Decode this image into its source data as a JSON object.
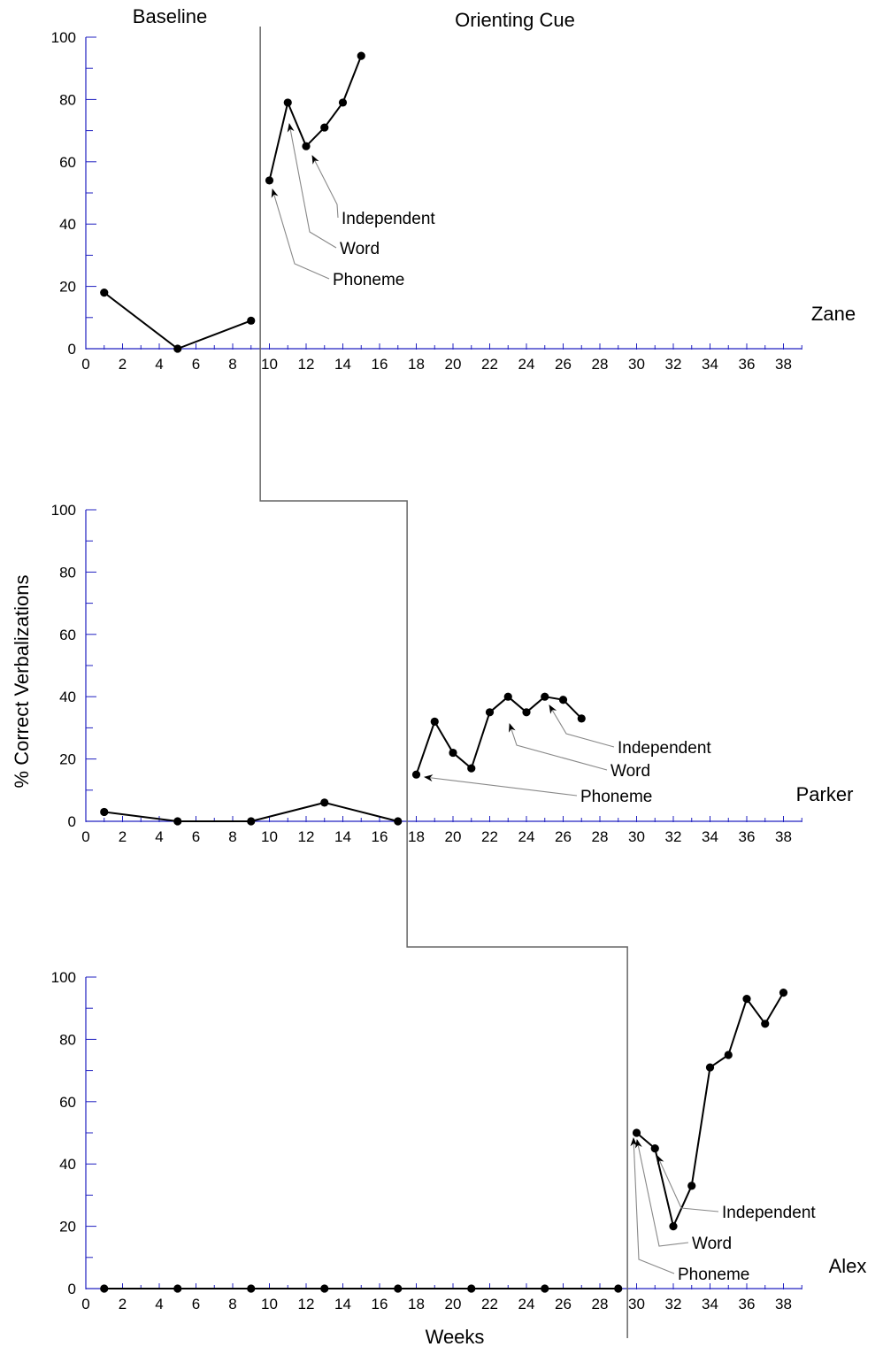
{
  "phase_labels": {
    "baseline": "Baseline",
    "treatment": "Orienting Cue"
  },
  "y_axis_title": "% Correct Verbalizations",
  "x_axis_title": "Weeks",
  "colors": {
    "axis": "#2020c0",
    "data": "#000000",
    "phase_line": "#666666",
    "annotation": "#888888"
  },
  "chart_data": [
    {
      "type": "line",
      "subject": "Zane",
      "xlim": [
        0,
        39
      ],
      "ylim": [
        0,
        100
      ],
      "x_ticks": [
        0,
        2,
        4,
        6,
        8,
        10,
        12,
        14,
        16,
        18,
        20,
        22,
        24,
        26,
        28,
        30,
        32,
        34,
        36,
        38
      ],
      "y_ticks": [
        0,
        20,
        40,
        60,
        80,
        100
      ],
      "grid": false,
      "phase_change_after_week": 9,
      "segments": [
        {
          "phase": "Baseline",
          "x": [
            1,
            5,
            9
          ],
          "y": [
            18,
            0,
            9
          ]
        },
        {
          "phase": "Orienting Cue",
          "x": [
            10,
            11,
            12,
            13,
            14,
            15
          ],
          "y": [
            54,
            79,
            65,
            71,
            79,
            94
          ]
        }
      ],
      "annotations": [
        {
          "text": "Phoneme",
          "x": 10,
          "y": 54
        },
        {
          "text": "Word",
          "x": 11,
          "y": 79
        },
        {
          "text": "Independent",
          "x": 12,
          "y": 65
        }
      ]
    },
    {
      "type": "line",
      "subject": "Parker",
      "xlim": [
        0,
        39
      ],
      "ylim": [
        0,
        100
      ],
      "x_ticks": [
        0,
        2,
        4,
        6,
        8,
        10,
        12,
        14,
        16,
        18,
        20,
        22,
        24,
        26,
        28,
        30,
        32,
        34,
        36,
        38
      ],
      "y_ticks": [
        0,
        20,
        40,
        60,
        80,
        100
      ],
      "grid": false,
      "phase_change_after_week": 17,
      "segments": [
        {
          "phase": "Baseline",
          "x": [
            1,
            5,
            9,
            13,
            17
          ],
          "y": [
            3,
            0,
            0,
            6,
            0
          ]
        },
        {
          "phase": "Orienting Cue",
          "x": [
            18,
            19,
            20,
            21,
            22,
            23,
            24,
            25,
            26,
            27
          ],
          "y": [
            15,
            32,
            22,
            17,
            35,
            40,
            35,
            40,
            39,
            33
          ]
        }
      ],
      "annotations": [
        {
          "text": "Phoneme",
          "x": 18,
          "y": 15
        },
        {
          "text": "Word",
          "x": 23,
          "y": 40
        },
        {
          "text": "Independent",
          "x": 25,
          "y": 40
        }
      ]
    },
    {
      "type": "line",
      "subject": "Alex",
      "xlim": [
        0,
        39
      ],
      "ylim": [
        0,
        100
      ],
      "x_ticks": [
        0,
        2,
        4,
        6,
        8,
        10,
        12,
        14,
        16,
        18,
        20,
        22,
        24,
        26,
        28,
        30,
        32,
        34,
        36,
        38
      ],
      "y_ticks": [
        0,
        20,
        40,
        60,
        80,
        100
      ],
      "grid": false,
      "phase_change_after_week": 29,
      "segments": [
        {
          "phase": "Baseline",
          "x": [
            1,
            5,
            9,
            13,
            17,
            21,
            25,
            29
          ],
          "y": [
            0,
            0,
            0,
            0,
            0,
            0,
            0,
            0
          ]
        },
        {
          "phase": "Orienting Cue",
          "x": [
            30,
            31,
            32,
            33,
            34,
            35,
            36,
            37,
            38
          ],
          "y": [
            50,
            45,
            20,
            33,
            71,
            75,
            93,
            85,
            95
          ]
        }
      ],
      "annotations": [
        {
          "text": "Phoneme",
          "x": 30,
          "y": 50
        },
        {
          "text": "Word",
          "x": 30,
          "y": 50
        },
        {
          "text": "Independent",
          "x": 31,
          "y": 45
        }
      ]
    }
  ]
}
